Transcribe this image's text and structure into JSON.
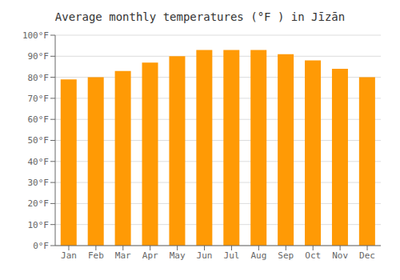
{
  "chart_data": {
    "type": "bar",
    "title": "Average monthly temperatures (°F ) in Jīzān",
    "categories": [
      "Jan",
      "Feb",
      "Mar",
      "Apr",
      "May",
      "Jun",
      "Jul",
      "Aug",
      "Sep",
      "Oct",
      "Nov",
      "Dec"
    ],
    "values": [
      79,
      80,
      83,
      87,
      90,
      93,
      93,
      93,
      91,
      88,
      84,
      80
    ],
    "color": "#FF9A05",
    "ylim": [
      0,
      100
    ],
    "yticks": [
      {
        "value": 0,
        "label": "0°F"
      },
      {
        "value": 10,
        "label": "10°F"
      },
      {
        "value": 20,
        "label": "20°F"
      },
      {
        "value": 30,
        "label": "30°F"
      },
      {
        "value": 40,
        "label": "40°F"
      },
      {
        "value": 50,
        "label": "50°F"
      },
      {
        "value": 60,
        "label": "60°F"
      },
      {
        "value": 70,
        "label": "70°F"
      },
      {
        "value": 80,
        "label": "80°F"
      },
      {
        "value": 90,
        "label": "90°F"
      },
      {
        "value": 100,
        "label": "100°F"
      }
    ],
    "grid": true
  }
}
